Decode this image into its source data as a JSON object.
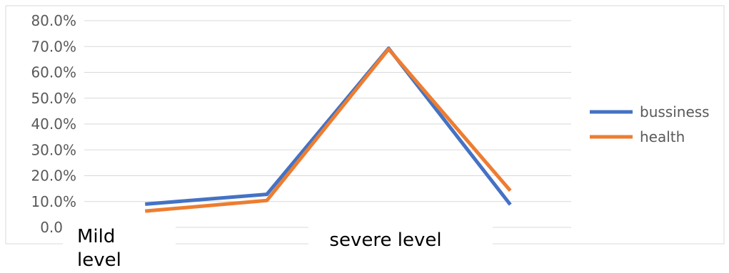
{
  "chart_data": {
    "type": "line",
    "categories": [
      "Mild level",
      "",
      "severe level",
      ""
    ],
    "y_tick_labels": [
      "0.0%",
      "10.0%",
      "20.0%",
      "30.0%",
      "40.0%",
      "50.0%",
      "60.0%",
      "70.0%",
      "80.0%"
    ],
    "ylim": [
      0,
      80
    ],
    "grid": true,
    "legend_position": "right",
    "series": [
      {
        "name": "bussiness",
        "color": "#4472C4",
        "values": [
          9.0,
          12.8,
          69.3,
          8.8
        ]
      },
      {
        "name": "health",
        "color": "#ED7D31",
        "values": [
          6.3,
          10.4,
          69.0,
          14.2
        ]
      }
    ]
  }
}
